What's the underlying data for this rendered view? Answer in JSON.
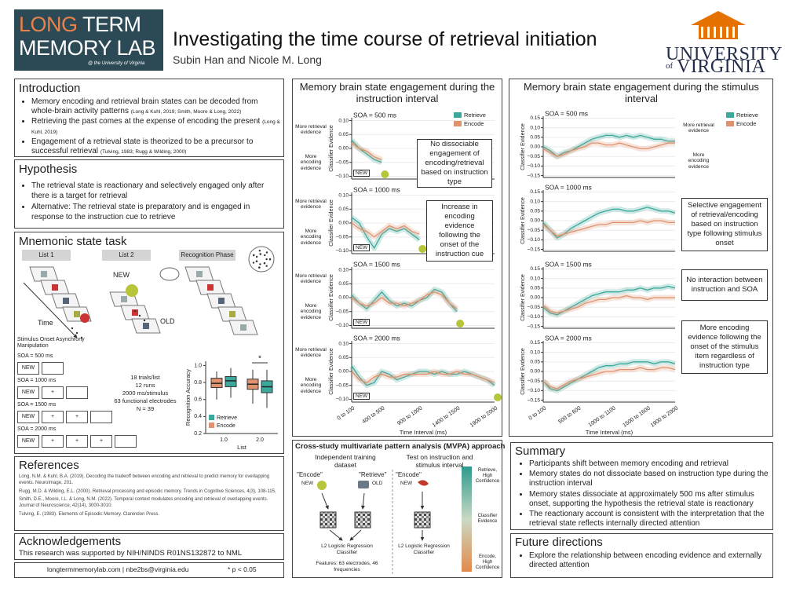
{
  "header": {
    "lab_logo": {
      "line1": [
        "LONG",
        "TERM"
      ],
      "line2": "MEMORY LAB",
      "tagline": "@ the University of Virginia"
    },
    "title": "Investigating the time course of retrieval initiation",
    "authors": "Subin Han and Nicole M. Long",
    "university": {
      "top": "UNIVERSITY",
      "of": "of",
      "bottom": "VIRGINIA"
    }
  },
  "introduction": {
    "heading": "Introduction",
    "bullets": [
      {
        "text": "Memory encoding and retrieval brain states can be decoded from whole-brain activity patterns",
        "cite": "(Long & Kuhl, 2019; Smith, Moore & Long, 2022)"
      },
      {
        "text": "Retrieving the past comes at the expense of encoding the present",
        "cite": "(Long & Kuhl, 2019)"
      },
      {
        "text": "Engagement of a retrieval state is theorized to be a precursor to successful retrieval",
        "cite": "(Tulving, 1983; Rugg & Wilding, 2000)"
      }
    ]
  },
  "hypothesis": {
    "heading": "Hypothesis",
    "bullets": [
      "The retrieval state is reactionary and selectively engaged only after there is a target for retrieval",
      "Alternative: The retrieval state is preparatory and is engaged in response to the instruction cue to retrieve"
    ]
  },
  "task": {
    "heading": "Mnemonic state task",
    "phases": [
      "List 1",
      "List 2",
      "Recognition Phase"
    ],
    "cues": [
      "NEW",
      "OLD"
    ],
    "time": "Time",
    "soa_heading": "Stimulus Onset Asynchrony Manipulation",
    "soa": [
      {
        "label": "SOA = 500 ms",
        "frames": [
          "NEW"
        ]
      },
      {
        "label": "SOA = 1000 ms",
        "frames": [
          "NEW",
          "+"
        ]
      },
      {
        "label": "SOA = 1500 ms",
        "frames": [
          "NEW",
          "+",
          "+"
        ]
      },
      {
        "label": "SOA = 2000 ms",
        "frames": [
          "NEW",
          "+",
          "+",
          "+"
        ]
      }
    ],
    "details": [
      "18 trials/list",
      "12 runs",
      "2000 ms/stimulus",
      "63 functional electrodes",
      "N = 39"
    ],
    "accuracy": {
      "type": "box",
      "y_label": "Recognition Accuracy",
      "x_label": "List",
      "categories": [
        "1.0",
        "2.0"
      ],
      "ylim": [
        0.2,
        1.05
      ],
      "yticks": [
        0.2,
        0.4,
        0.6,
        0.8,
        {
          "value": 1,
          "label": "1.0"
        }
      ],
      "significance": "*",
      "series": [
        {
          "name": "Retrieve",
          "color": "#3aa89a",
          "boxes": [
            {
              "min": 0.62,
              "q1": 0.75,
              "median": 0.82,
              "q3": 0.87,
              "max": 0.97
            },
            {
              "min": 0.5,
              "q1": 0.68,
              "median": 0.75,
              "q3": 0.82,
              "max": 0.95
            }
          ]
        },
        {
          "name": "Encode",
          "color": "#e0926e",
          "boxes": [
            {
              "min": 0.6,
              "q1": 0.74,
              "median": 0.79,
              "q3": 0.85,
              "max": 0.93
            },
            {
              "min": 0.55,
              "q1": 0.72,
              "median": 0.78,
              "q3": 0.84,
              "max": 0.95
            }
          ]
        }
      ]
    }
  },
  "references": {
    "heading": "References",
    "items": [
      "Long, N.M. & Kuhl, B.A. (2019). Decoding the tradeoff between encoding and retrieval to predict memory for overlapping events. NeuroImage, 201.",
      "Rugg, M.D. & Wilding, E.L. (2000). Retrieval processing and episodic memory. Trends in Cognitive Sciences, 4(3), 108-115.",
      "Smith, D.E., Moore, I.L. & Long, N.M. (2022). Temporal context modulates encoding and retrieval of overlapping events. Journal of Neuroscience, 42(14), 3000-3010.",
      "Tulving, E. (1983). Elements of Episodic Memory. Clarendon Press."
    ]
  },
  "acknowledgements": {
    "heading": "Acknowledgements",
    "text": "This research was supported by NIH/NINDS R01NS132872 to NML"
  },
  "footer": {
    "contact": "longtermmemorylab.com | nbe2bs@virginia.edu",
    "note": "* p < 0.05"
  },
  "instruction_figure": {
    "type": "line",
    "title": "Memory brain state engagement during the instruction interval",
    "y_label": "Classifier Evidence",
    "x_label": "Time Interval (ms)",
    "side_labels": [
      "More retrieval evidence",
      "More encoding evidence"
    ],
    "cue": "NEW",
    "categories": [
      "0 to 100",
      null,
      null,
      null,
      "400 to 500",
      null,
      null,
      null,
      null,
      "900 to 1000",
      null,
      null,
      null,
      null,
      "1400 to 1500",
      null,
      null,
      null,
      null,
      "1900 to 2000"
    ],
    "ylim": [
      -0.11,
      0.11
    ],
    "yticks": [
      {
        "value": 0.1,
        "label": "0.10"
      },
      {
        "value": 0.05,
        "label": "0.05"
      },
      {
        "value": 0,
        "label": "0.00"
      },
      {
        "value": -0.05,
        "label": "−0.05"
      },
      {
        "value": -0.1,
        "label": "−0.10"
      }
    ],
    "panels": [
      {
        "label": "SOA = 500 ms",
        "note": "No dissociable engagement of encoding/retrieval based on instruction type",
        "series": [
          {
            "name": "Retrieve",
            "color": "#3aa89a",
            "values": [
              0.03,
              0.0,
              -0.02,
              -0.04,
              -0.05,
              null,
              null,
              null,
              null,
              null,
              null,
              null,
              null,
              null,
              null,
              null,
              null,
              null,
              null,
              null
            ]
          },
          {
            "name": "Encode",
            "color": "#e0926e",
            "values": [
              0.02,
              0.0,
              -0.01,
              -0.03,
              -0.04,
              null,
              null,
              null,
              null,
              null,
              null,
              null,
              null,
              null,
              null,
              null,
              null,
              null,
              null,
              null
            ]
          }
        ]
      },
      {
        "label": "SOA = 1000 ms",
        "note": "Increase in encoding evidence following the onset of the instruction cue",
        "series": [
          {
            "name": "Retrieve",
            "color": "#3aa89a",
            "values": [
              0.02,
              0.0,
              -0.05,
              -0.09,
              -0.04,
              -0.02,
              -0.03,
              -0.02,
              -0.04,
              -0.06,
              null,
              null,
              null,
              null,
              null,
              null,
              null,
              null,
              null,
              null
            ]
          },
          {
            "name": "Encode",
            "color": "#e0926e",
            "values": [
              0.0,
              -0.02,
              -0.03,
              -0.05,
              -0.03,
              -0.01,
              -0.02,
              -0.01,
              -0.03,
              -0.04,
              null,
              null,
              null,
              null,
              null,
              null,
              null,
              null,
              null,
              null
            ]
          }
        ]
      },
      {
        "label": "SOA = 1500 ms",
        "series": [
          {
            "name": "Retrieve",
            "color": "#3aa89a",
            "values": [
              0.01,
              -0.02,
              -0.04,
              -0.01,
              0.02,
              -0.01,
              -0.03,
              -0.02,
              -0.03,
              -0.01,
              0.0,
              0.03,
              0.02,
              -0.02,
              -0.05,
              null,
              null,
              null,
              null,
              null
            ]
          },
          {
            "name": "Encode",
            "color": "#e0926e",
            "values": [
              0.0,
              -0.02,
              -0.03,
              -0.02,
              0.0,
              -0.02,
              -0.02,
              -0.03,
              -0.02,
              -0.01,
              0.01,
              0.02,
              0.01,
              -0.02,
              -0.04,
              null,
              null,
              null,
              null,
              null
            ]
          }
        ]
      },
      {
        "label": "SOA = 2000 ms",
        "series": [
          {
            "name": "Retrieve",
            "color": "#3aa89a",
            "values": [
              0.02,
              -0.02,
              -0.05,
              -0.04,
              0.0,
              -0.01,
              -0.03,
              -0.02,
              -0.01,
              0.0,
              0.0,
              -0.01,
              0.0,
              -0.01,
              -0.01,
              0.0,
              -0.01,
              -0.02,
              -0.03,
              -0.05
            ]
          },
          {
            "name": "Encode",
            "color": "#e0926e",
            "values": [
              0.0,
              -0.03,
              -0.04,
              -0.02,
              -0.01,
              -0.02,
              -0.02,
              -0.01,
              -0.01,
              -0.01,
              -0.01,
              0.0,
              -0.01,
              -0.01,
              0.0,
              -0.01,
              -0.01,
              -0.02,
              -0.03,
              -0.04
            ]
          }
        ]
      }
    ]
  },
  "stimulus_figure": {
    "type": "line",
    "title": "Memory brain state engagement during the stimulus interval",
    "y_label": "Classifier Evidence",
    "x_label": "Time Interval (ms)",
    "side_labels": [
      "More retrieval evidence",
      "More encoding evidence"
    ],
    "categories": [
      "0 to 100",
      null,
      null,
      null,
      null,
      "500 to 600",
      null,
      null,
      null,
      null,
      "1000 to 1100",
      null,
      null,
      null,
      null,
      "1500 to 1600",
      null,
      null,
      null,
      "1900 to 2000"
    ],
    "ylim": [
      -0.16,
      0.16
    ],
    "yticks": [
      {
        "value": 0.15,
        "label": "0.15"
      },
      {
        "value": 0.1,
        "label": "0.10"
      },
      {
        "value": 0.05,
        "label": "0.05"
      },
      {
        "value": 0,
        "label": "0.00"
      },
      {
        "value": -0.05,
        "label": "−0.05"
      },
      {
        "value": -0.1,
        "label": "−0.10"
      },
      {
        "value": -0.15,
        "label": "−0.15"
      }
    ],
    "panels": [
      {
        "label": "SOA = 500 ms",
        "series": [
          {
            "name": "Retrieve",
            "color": "#3aa89a",
            "values": [
              0.0,
              -0.02,
              -0.05,
              -0.03,
              -0.02,
              0.0,
              0.02,
              0.04,
              0.05,
              0.06,
              0.06,
              0.05,
              0.06,
              0.05,
              0.06,
              0.05,
              0.04,
              0.04,
              0.03,
              0.03
            ]
          },
          {
            "name": "Encode",
            "color": "#e0926e",
            "values": [
              -0.01,
              -0.03,
              -0.05,
              -0.04,
              -0.02,
              -0.01,
              0.0,
              0.02,
              0.02,
              0.01,
              0.01,
              0.02,
              0.01,
              0.0,
              -0.01,
              -0.01,
              0.0,
              0.01,
              0.02,
              0.02
            ]
          }
        ]
      },
      {
        "label": "SOA = 1000 ms",
        "note": "Selective engagement of retrieval/encoding based on instruction type following stimulus onset",
        "series": [
          {
            "name": "Retrieve",
            "color": "#3aa89a",
            "values": [
              -0.01,
              -0.05,
              -0.09,
              -0.07,
              -0.04,
              -0.02,
              0.0,
              0.02,
              0.04,
              0.05,
              0.06,
              0.06,
              0.05,
              0.05,
              0.06,
              0.07,
              0.06,
              0.05,
              0.05,
              0.04
            ]
          },
          {
            "name": "Encode",
            "color": "#e0926e",
            "values": [
              -0.02,
              -0.05,
              -0.08,
              -0.07,
              -0.06,
              -0.05,
              -0.04,
              -0.03,
              -0.02,
              -0.02,
              -0.01,
              -0.01,
              -0.01,
              -0.01,
              0.0,
              -0.01,
              0.0,
              0.0,
              -0.01,
              -0.01
            ]
          }
        ]
      },
      {
        "label": "SOA = 1500 ms",
        "note": "No interaction between instruction and SOA",
        "series": [
          {
            "name": "Retrieve",
            "color": "#3aa89a",
            "values": [
              -0.05,
              -0.08,
              -0.09,
              -0.07,
              -0.05,
              -0.03,
              -0.01,
              0.01,
              0.02,
              0.03,
              0.03,
              0.03,
              0.04,
              0.04,
              0.05,
              0.04,
              0.05,
              0.05,
              0.06,
              0.05
            ]
          },
          {
            "name": "Encode",
            "color": "#e0926e",
            "values": [
              -0.04,
              -0.07,
              -0.08,
              -0.07,
              -0.06,
              -0.05,
              -0.03,
              -0.02,
              -0.01,
              -0.01,
              0.0,
              0.0,
              0.01,
              0.0,
              0.0,
              -0.01,
              0.0,
              0.0,
              0.0,
              0.0
            ]
          }
        ]
      },
      {
        "label": "SOA = 2000 ms",
        "note": "More encoding evidence following the onset of the stimulus item regardless of instruction type",
        "series": [
          {
            "name": "Retrieve",
            "color": "#3aa89a",
            "values": [
              -0.05,
              -0.09,
              -0.1,
              -0.08,
              -0.06,
              -0.04,
              -0.02,
              0.0,
              0.02,
              0.03,
              0.03,
              0.04,
              0.04,
              0.05,
              0.05,
              0.05,
              0.04,
              0.05,
              0.05,
              0.04
            ]
          },
          {
            "name": "Encode",
            "color": "#e0926e",
            "values": [
              -0.05,
              -0.08,
              -0.09,
              -0.07,
              -0.05,
              -0.04,
              -0.03,
              -0.02,
              -0.01,
              0.0,
              0.0,
              0.01,
              0.01,
              0.01,
              0.02,
              0.01,
              0.01,
              0.02,
              0.02,
              0.01
            ]
          }
        ]
      }
    ]
  },
  "mvpa": {
    "title": "Cross-study multivariate pattern analysis (MVPA) approach",
    "train": {
      "heading": "Independent training dataset",
      "labels": [
        "\"Encode\"",
        "\"Retrieve\""
      ],
      "cues": [
        "NEW",
        "OLD"
      ],
      "classifier": "L2 Logistic Regression Classifier",
      "features": "Features: 63 electrodes, 46 frequencies"
    },
    "test": {
      "heading": "Test on instruction and stimulus interval",
      "label": "\"Encode\"",
      "cue": "NEW",
      "classifier": "L2 Logistic Regression Classifier"
    },
    "scale": [
      "Retrieve, High Confidence",
      "Classifier Evidence",
      "Encode, High Confidence"
    ]
  },
  "summary": {
    "heading": "Summary",
    "bullets": [
      "Participants shift between memory encoding and retrieval",
      "Memory states do not dissociate based on instruction type during the instruction interval",
      "Memory states dissociate at approximately 500 ms after stimulus onset, supporting the hypothesis the retrieval state is reactionary",
      "The reactionary account is consistent with the interpretation that the retrieval state reflects internally directed attention"
    ]
  },
  "future": {
    "heading": "Future directions",
    "bullets": [
      "Explore the relationship between encoding evidence and externally directed attention"
    ]
  }
}
